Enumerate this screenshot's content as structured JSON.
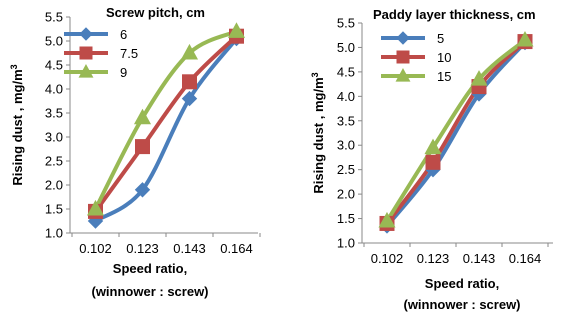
{
  "chart_data": [
    {
      "type": "line",
      "categories": [
        "0.102",
        "0.123",
        "0.143",
        "0.164"
      ],
      "ylabel": "Rising dust , mg/m",
      "ylabel_sup": "3",
      "xlabel": "Speed ratio,",
      "xlabel2": "(winnower : screw)",
      "legend_title": "Screw pitch, cm",
      "legend_position": "top-left",
      "ylim": [
        1.0,
        5.5
      ],
      "yticks": [
        "1.0",
        "1.5",
        "2.0",
        "2.5",
        "3.0",
        "3.5",
        "4.0",
        "4.5",
        "5.0",
        "5.5"
      ],
      "grid": false,
      "series": [
        {
          "name": "6",
          "marker": "diamond",
          "color": "#4a7ebb",
          "values": [
            1.25,
            1.9,
            3.8,
            5.05
          ]
        },
        {
          "name": "7.5",
          "marker": "square",
          "color": "#be4b48",
          "values": [
            1.45,
            2.8,
            4.15,
            5.1
          ]
        },
        {
          "name": "9",
          "marker": "triangle",
          "color": "#98b954",
          "values": [
            1.5,
            3.4,
            4.75,
            5.2
          ]
        }
      ]
    },
    {
      "type": "line",
      "categories": [
        "0.102",
        "0.123",
        "0.143",
        "0.164"
      ],
      "ylabel": "Rising dust , mg/m",
      "ylabel_sup": "3",
      "xlabel": "Speed ratio,",
      "xlabel2": "(winnower : screw)",
      "legend_title": "Paddy layer thickness, cm",
      "legend_position": "top-left",
      "ylim": [
        1.0,
        5.5
      ],
      "yticks": [
        "1.0",
        "1.5",
        "2.0",
        "2.5",
        "3.0",
        "3.5",
        "4.0",
        "4.5",
        "5.0",
        "5.5"
      ],
      "grid": false,
      "series": [
        {
          "name": "5",
          "marker": "diamond",
          "color": "#4a7ebb",
          "values": [
            1.35,
            2.5,
            4.05,
            5.1
          ]
        },
        {
          "name": "10",
          "marker": "square",
          "color": "#be4b48",
          "values": [
            1.4,
            2.65,
            4.2,
            5.12
          ]
        },
        {
          "name": "15",
          "marker": "triangle",
          "color": "#98b954",
          "values": [
            1.45,
            2.95,
            4.35,
            5.15
          ]
        }
      ]
    }
  ]
}
